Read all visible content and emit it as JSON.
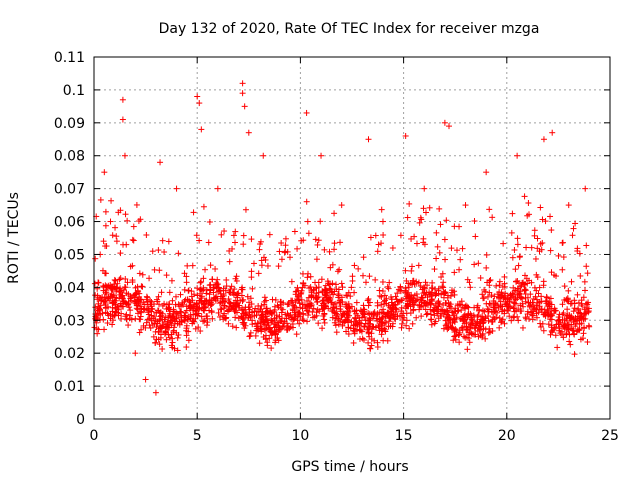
{
  "chart_data": {
    "type": "scatter",
    "title": "Day 132 of 2020, Rate Of TEC Index for receiver mzga",
    "xlabel": "GPS time / hours",
    "ylabel": "ROTI / TECUs",
    "xlim": [
      0,
      25
    ],
    "ylim": [
      0,
      0.11
    ],
    "x_ticks": [
      "0",
      "5",
      "10",
      "15",
      "20",
      "25"
    ],
    "y_ticks": [
      "0",
      "0.01",
      "0.02",
      "0.03",
      "0.04",
      "0.05",
      "0.06",
      "0.07",
      "0.08",
      "0.09",
      "0.1",
      "0.11"
    ],
    "x_tick_values": [
      0,
      5,
      10,
      15,
      20,
      25
    ],
    "y_tick_values": [
      0,
      0.01,
      0.02,
      0.03,
      0.04,
      0.05,
      0.06,
      0.07,
      0.08,
      0.09,
      0.1,
      0.11
    ],
    "grid": true,
    "marker": "+",
    "color": "#ff0000",
    "series": [
      {
        "values_note": "dense cloud sampled at key features",
        "points": [
          [
            0.1,
            0.03
          ],
          [
            0.3,
            0.05
          ],
          [
            0.5,
            0.075
          ],
          [
            0.8,
            0.06
          ],
          [
            1.4,
            0.097
          ],
          [
            1.4,
            0.091
          ],
          [
            1.5,
            0.08
          ],
          [
            2.0,
            0.02
          ],
          [
            2.5,
            0.012
          ],
          [
            3.0,
            0.008
          ],
          [
            3.2,
            0.078
          ],
          [
            4.0,
            0.07
          ],
          [
            5.0,
            0.098
          ],
          [
            5.1,
            0.096
          ],
          [
            5.2,
            0.088
          ],
          [
            6.0,
            0.07
          ],
          [
            7.2,
            0.102
          ],
          [
            7.2,
            0.099
          ],
          [
            7.3,
            0.095
          ],
          [
            7.5,
            0.087
          ],
          [
            8.2,
            0.08
          ],
          [
            10.3,
            0.093
          ],
          [
            11.0,
            0.08
          ],
          [
            12.0,
            0.065
          ],
          [
            13.3,
            0.085
          ],
          [
            14.0,
            0.06
          ],
          [
            15.1,
            0.086
          ],
          [
            16.0,
            0.07
          ],
          [
            17.0,
            0.09
          ],
          [
            17.2,
            0.089
          ],
          [
            18.0,
            0.065
          ],
          [
            19.0,
            0.075
          ],
          [
            20.5,
            0.08
          ],
          [
            21.8,
            0.085
          ],
          [
            22.2,
            0.087
          ],
          [
            23.0,
            0.065
          ],
          [
            23.8,
            0.07
          ]
        ]
      }
    ]
  }
}
